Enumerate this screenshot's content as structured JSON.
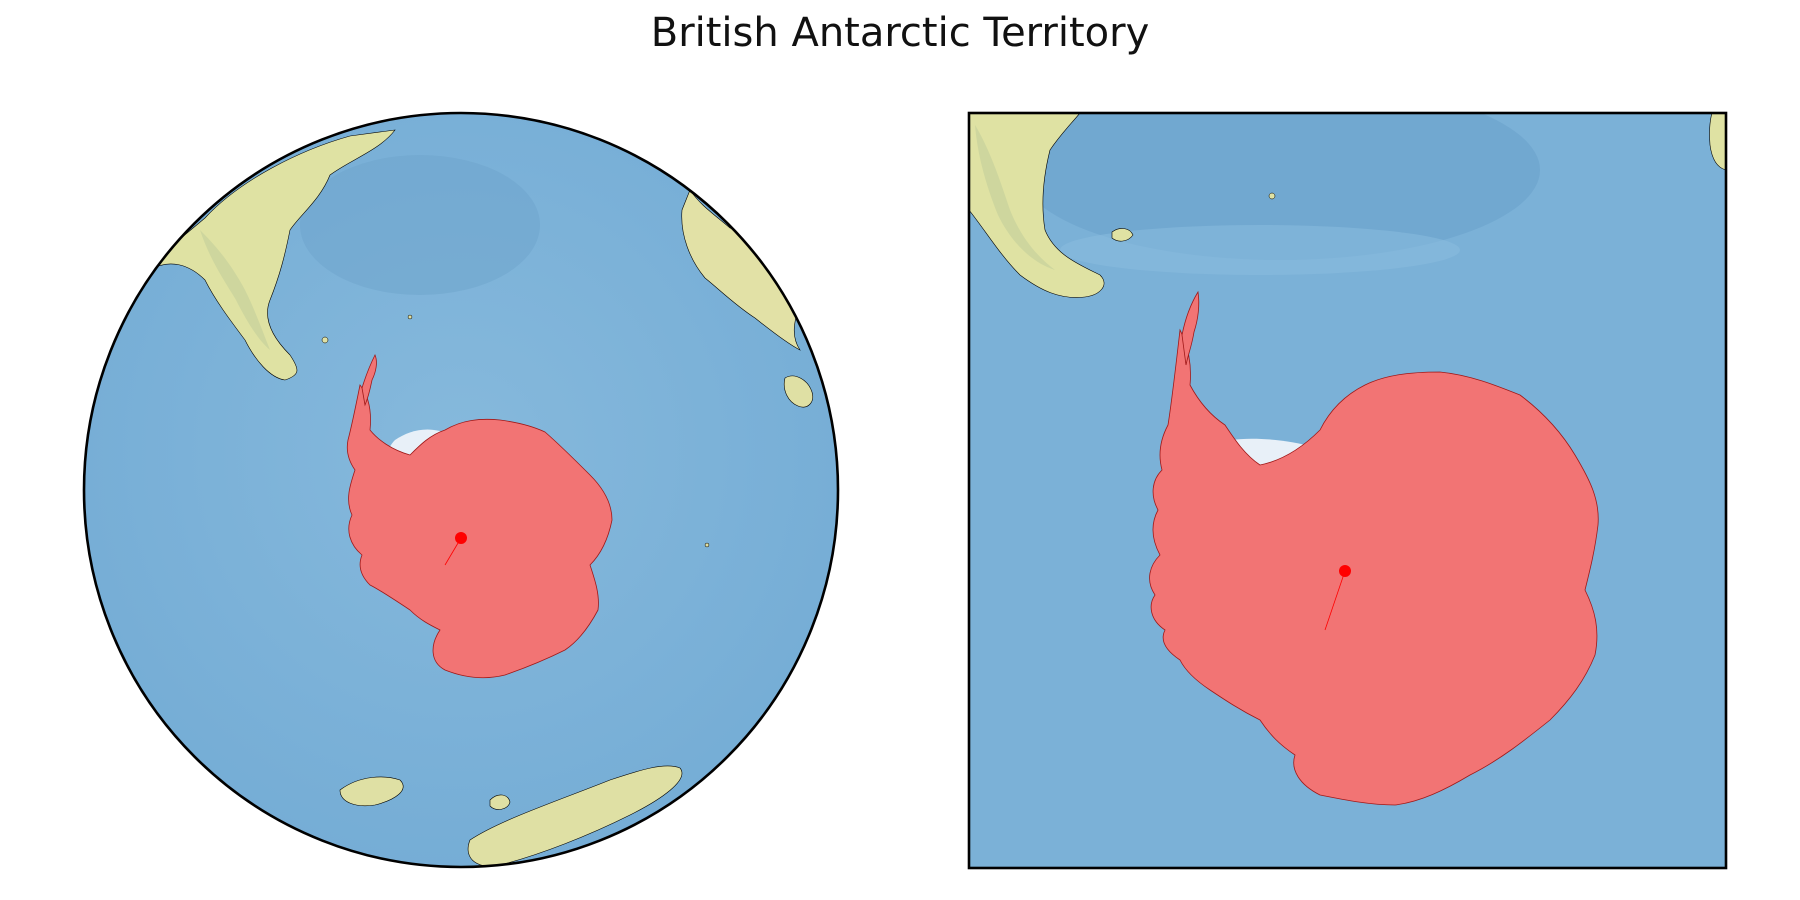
{
  "title": "British Antarctic Territory",
  "colors": {
    "ocean": "#7fb3d8",
    "ocean_deep": "#6ea7d0",
    "land": "#e6e4a6",
    "land_shade": "#cfd79a",
    "ice_shelf": "#e8f0f8",
    "highlight_fill": "#f07070",
    "highlight_point": "#ff0000",
    "outline": "#000000"
  },
  "maps": [
    {
      "name": "globe-view",
      "projection": "orthographic-south-polar",
      "frame": "circle"
    },
    {
      "name": "inset-view",
      "projection": "south-polar-zoom",
      "frame": "rectangle"
    }
  ],
  "highlight": {
    "region": "Antarctica",
    "marker": "south-pole"
  }
}
